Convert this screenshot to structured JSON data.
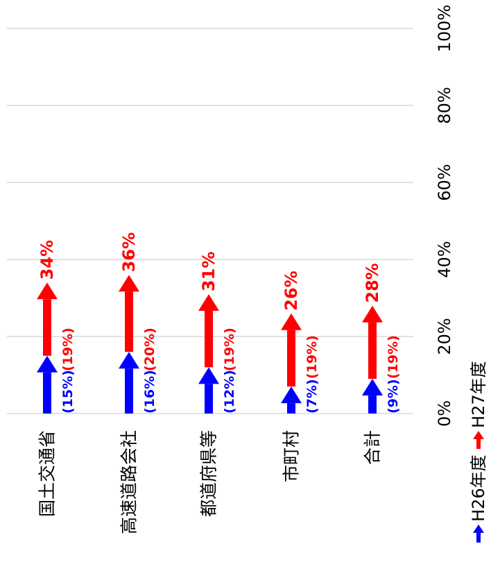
{
  "chart_data": {
    "type": "bar",
    "orientation": "rotated-90-clockwise",
    "categories": [
      "国土交通省",
      "高速道路会社",
      "都道府県等",
      "市町村",
      "合計"
    ],
    "series": [
      {
        "name": "H26年度",
        "values": [
          15,
          16,
          12,
          7,
          9
        ],
        "labels": [
          "(15%)",
          "(16%)",
          "(12%)",
          "(7%)",
          "(9%)"
        ],
        "color": "#0000ff"
      },
      {
        "name": "H27年度",
        "values": [
          34,
          36,
          31,
          26,
          28
        ],
        "labels": [
          "34%",
          "36%",
          "31%",
          "26%",
          "28%"
        ],
        "color": "#ff0000"
      }
    ],
    "increase_labels": [
      "(19%)",
      "(20%)",
      "(19%)",
      "(19%)",
      "(19%)"
    ],
    "value_axis": {
      "ticks": [
        "0%",
        "20%",
        "40%",
        "60%",
        "80%",
        "100%"
      ],
      "range": [
        0,
        100
      ]
    },
    "grid": true,
    "legend_position": "bottom-right"
  }
}
